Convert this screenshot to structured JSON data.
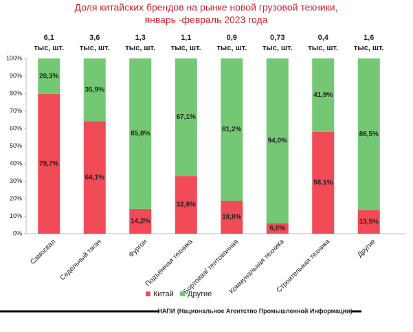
{
  "chart_data": {
    "type": "stacked_bar_100",
    "title": "Доля китайских брендов на рынке новой грузовой техники,",
    "subtitle": "январь -февраль 2023 года",
    "categories": [
      "Самосвал",
      "Седельный тягач",
      "Фургон",
      "Подъемная техника",
      "Бортовая/ тентованная",
      "Коммунальная техника",
      "Строительная техника",
      "Другие"
    ],
    "totals": [
      6.1,
      3.6,
      1.3,
      1.1,
      0.9,
      0.73,
      0.4,
      1.6
    ],
    "totals_labels": [
      "6,1",
      "3,6",
      "1,3",
      "1,1",
      "0,9",
      "0,73",
      "0,4",
      "1,6"
    ],
    "totals_unit": "тыс, шт.",
    "series": [
      {
        "name": "Китай",
        "color": "#f04b57",
        "values": [
          79.7,
          64.1,
          14.2,
          32.9,
          18.8,
          6.0,
          58.1,
          13.5
        ],
        "value_labels": [
          "79,7%",
          "64,1%",
          "14,2%",
          "32,9%",
          "18,8%",
          "6,0%",
          "58,1%",
          "13,5%"
        ]
      },
      {
        "name": "Другие",
        "color": "#74c874",
        "values": [
          20.3,
          35.9,
          85.8,
          67.1,
          81.2,
          94.0,
          41.9,
          86.5
        ],
        "value_labels": [
          "20,3%",
          "35,9%",
          "85,8%",
          "67,1%",
          "81,2%",
          "94,0%",
          "41,9%",
          "86,5%"
        ]
      }
    ],
    "ylim": [
      0,
      100
    ],
    "yticks": [
      {
        "value": 0,
        "label": "0%"
      },
      {
        "value": 10,
        "label": "10%"
      },
      {
        "value": 20,
        "label": "20%"
      },
      {
        "value": 30,
        "label": "30%"
      },
      {
        "value": 40,
        "label": "40%"
      },
      {
        "value": 50,
        "label": "50%"
      },
      {
        "value": 60,
        "label": "60%"
      },
      {
        "value": 70,
        "label": "70%"
      },
      {
        "value": 80,
        "label": "80%"
      },
      {
        "value": 90,
        "label": "90%"
      },
      {
        "value": 100,
        "label": "100%"
      }
    ],
    "grid": false,
    "source": "НАПИ (Национальное Агентство Промышленной Информации)"
  }
}
